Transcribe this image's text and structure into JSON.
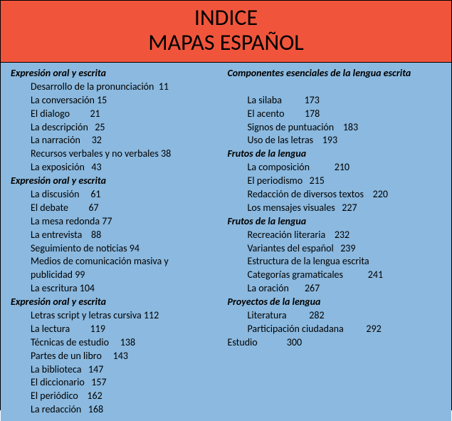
{
  "colors": {
    "header_bg": "#f0553c",
    "content_bg": "#8bb9df",
    "text": "#000000"
  },
  "header": {
    "title": "INDICE",
    "subtitle": "MAPAS ESPAÑOL"
  },
  "left": [
    {
      "type": "section",
      "text": "Expresión oral y escrita"
    },
    {
      "type": "entry",
      "text": "Desarrollo de la pronunciación  11"
    },
    {
      "type": "entry",
      "text": "La conversación 15"
    },
    {
      "type": "entry",
      "text": "El dialogo         21"
    },
    {
      "type": "entry",
      "text": "La descripción   25"
    },
    {
      "type": "entry",
      "text": "La narración     32"
    },
    {
      "type": "entry",
      "text": "Recursos verbales y no verbales 38"
    },
    {
      "type": "entry",
      "text": "La exposición   43"
    },
    {
      "type": "section",
      "text": "Expresión oral y escrita"
    },
    {
      "type": "entry",
      "text": "La discusión     61"
    },
    {
      "type": "entry",
      "text": "El debate         67"
    },
    {
      "type": "entry",
      "text": "La mesa redonda 77"
    },
    {
      "type": "entry",
      "text": "La entrevista    88"
    },
    {
      "type": "entry",
      "text": "Seguimiento de noticias 94"
    },
    {
      "type": "entry",
      "text": "Medios de comunicación masiva y"
    },
    {
      "type": "entry",
      "text": "publicidad 99"
    },
    {
      "type": "entry",
      "text": "La escritura 104"
    },
    {
      "type": "section",
      "text": "Expresión oral y escrita"
    },
    {
      "type": "entry",
      "text": "Letras script y letras cursiva 112"
    },
    {
      "type": "entry",
      "text": "La lectura         119"
    },
    {
      "type": "entry",
      "text": "Técnicas de estudio     138"
    },
    {
      "type": "entry",
      "text": "Partes de un libro     143"
    },
    {
      "type": "entry",
      "text": "La biblioteca   147"
    },
    {
      "type": "entry",
      "text": "El diccionario   157"
    },
    {
      "type": "entry",
      "text": "El periódico    162"
    },
    {
      "type": "entry",
      "text": "La redacción   168"
    }
  ],
  "right": [
    {
      "type": "section",
      "text": "Componentes esenciales de la lengua escrita"
    },
    {
      "type": "spacer",
      "text": ""
    },
    {
      "type": "entry",
      "text": "La silaba          173"
    },
    {
      "type": "entry",
      "text": "El acento         178"
    },
    {
      "type": "entry",
      "text": "Signos de puntuación    183"
    },
    {
      "type": "entry",
      "text": "Uso de las letras    193"
    },
    {
      "type": "section",
      "text": "Frutos de la lengua"
    },
    {
      "type": "entry",
      "text": "La composición           210"
    },
    {
      "type": "entry",
      "text": "El periodismo   215"
    },
    {
      "type": "entry",
      "text": "Redacción de diversos textos    220"
    },
    {
      "type": "entry",
      "text": "Los mensajes visuales   227"
    },
    {
      "type": "section",
      "text": "Frutos de la lengua"
    },
    {
      "type": "entry",
      "text": "Recreación literaria    232"
    },
    {
      "type": "entry",
      "text": "Variantes del español   239"
    },
    {
      "type": "entry",
      "text": "Estructura de la lengua escrita"
    },
    {
      "type": "entry",
      "text": "Categorías gramaticales           241"
    },
    {
      "type": "entry",
      "text": "La oración       267"
    },
    {
      "type": "section",
      "text": "Proyectos de la lengua"
    },
    {
      "type": "entry",
      "text": "Literatura          282"
    },
    {
      "type": "entry",
      "text": "Participación ciudadana          292"
    },
    {
      "type": "root",
      "text": "Estudio             300"
    }
  ]
}
